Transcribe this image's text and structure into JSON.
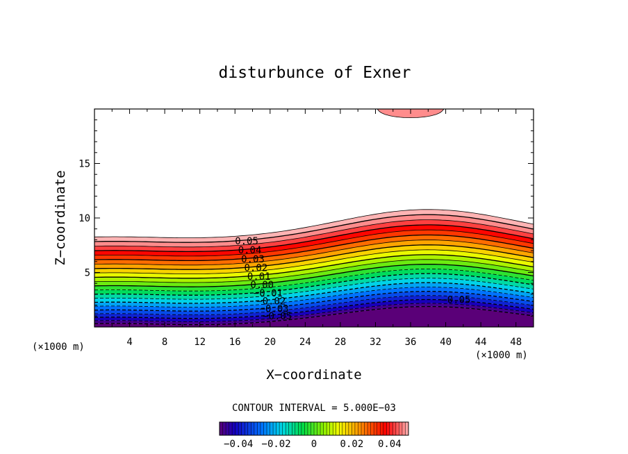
{
  "chart_data": {
    "type": "contour",
    "title": "disturbunce of Exner",
    "xlabel": "X−coordinate",
    "ylabel": "Z−coordinate",
    "x_unit": "(×1000 m)",
    "y_unit": "(×1000 m)",
    "xlim": [
      0,
      50
    ],
    "ylim": [
      0,
      20
    ],
    "x_ticks": [
      4,
      8,
      12,
      16,
      20,
      24,
      28,
      32,
      36,
      40,
      44,
      48
    ],
    "y_ticks": [
      5,
      10,
      15
    ],
    "contour_interval_label": "CONTOUR INTERVAL = 5.000E−03",
    "level_min": -0.05,
    "level_max": 0.055,
    "level_step": 0.005,
    "contour_labels": [
      "0.05",
      "0.04",
      "0.03",
      "0.02",
      "0.01",
      "0.00",
      "−0.01",
      "−0.02",
      "−0.03",
      "−0.05"
    ],
    "colorbar_min": -0.05,
    "colorbar_max": 0.05,
    "colorbar_ticks": [
      "−0.04",
      "−0.02",
      "0",
      "0.02",
      "0.04"
    ],
    "grid": false,
    "legend": "none"
  }
}
